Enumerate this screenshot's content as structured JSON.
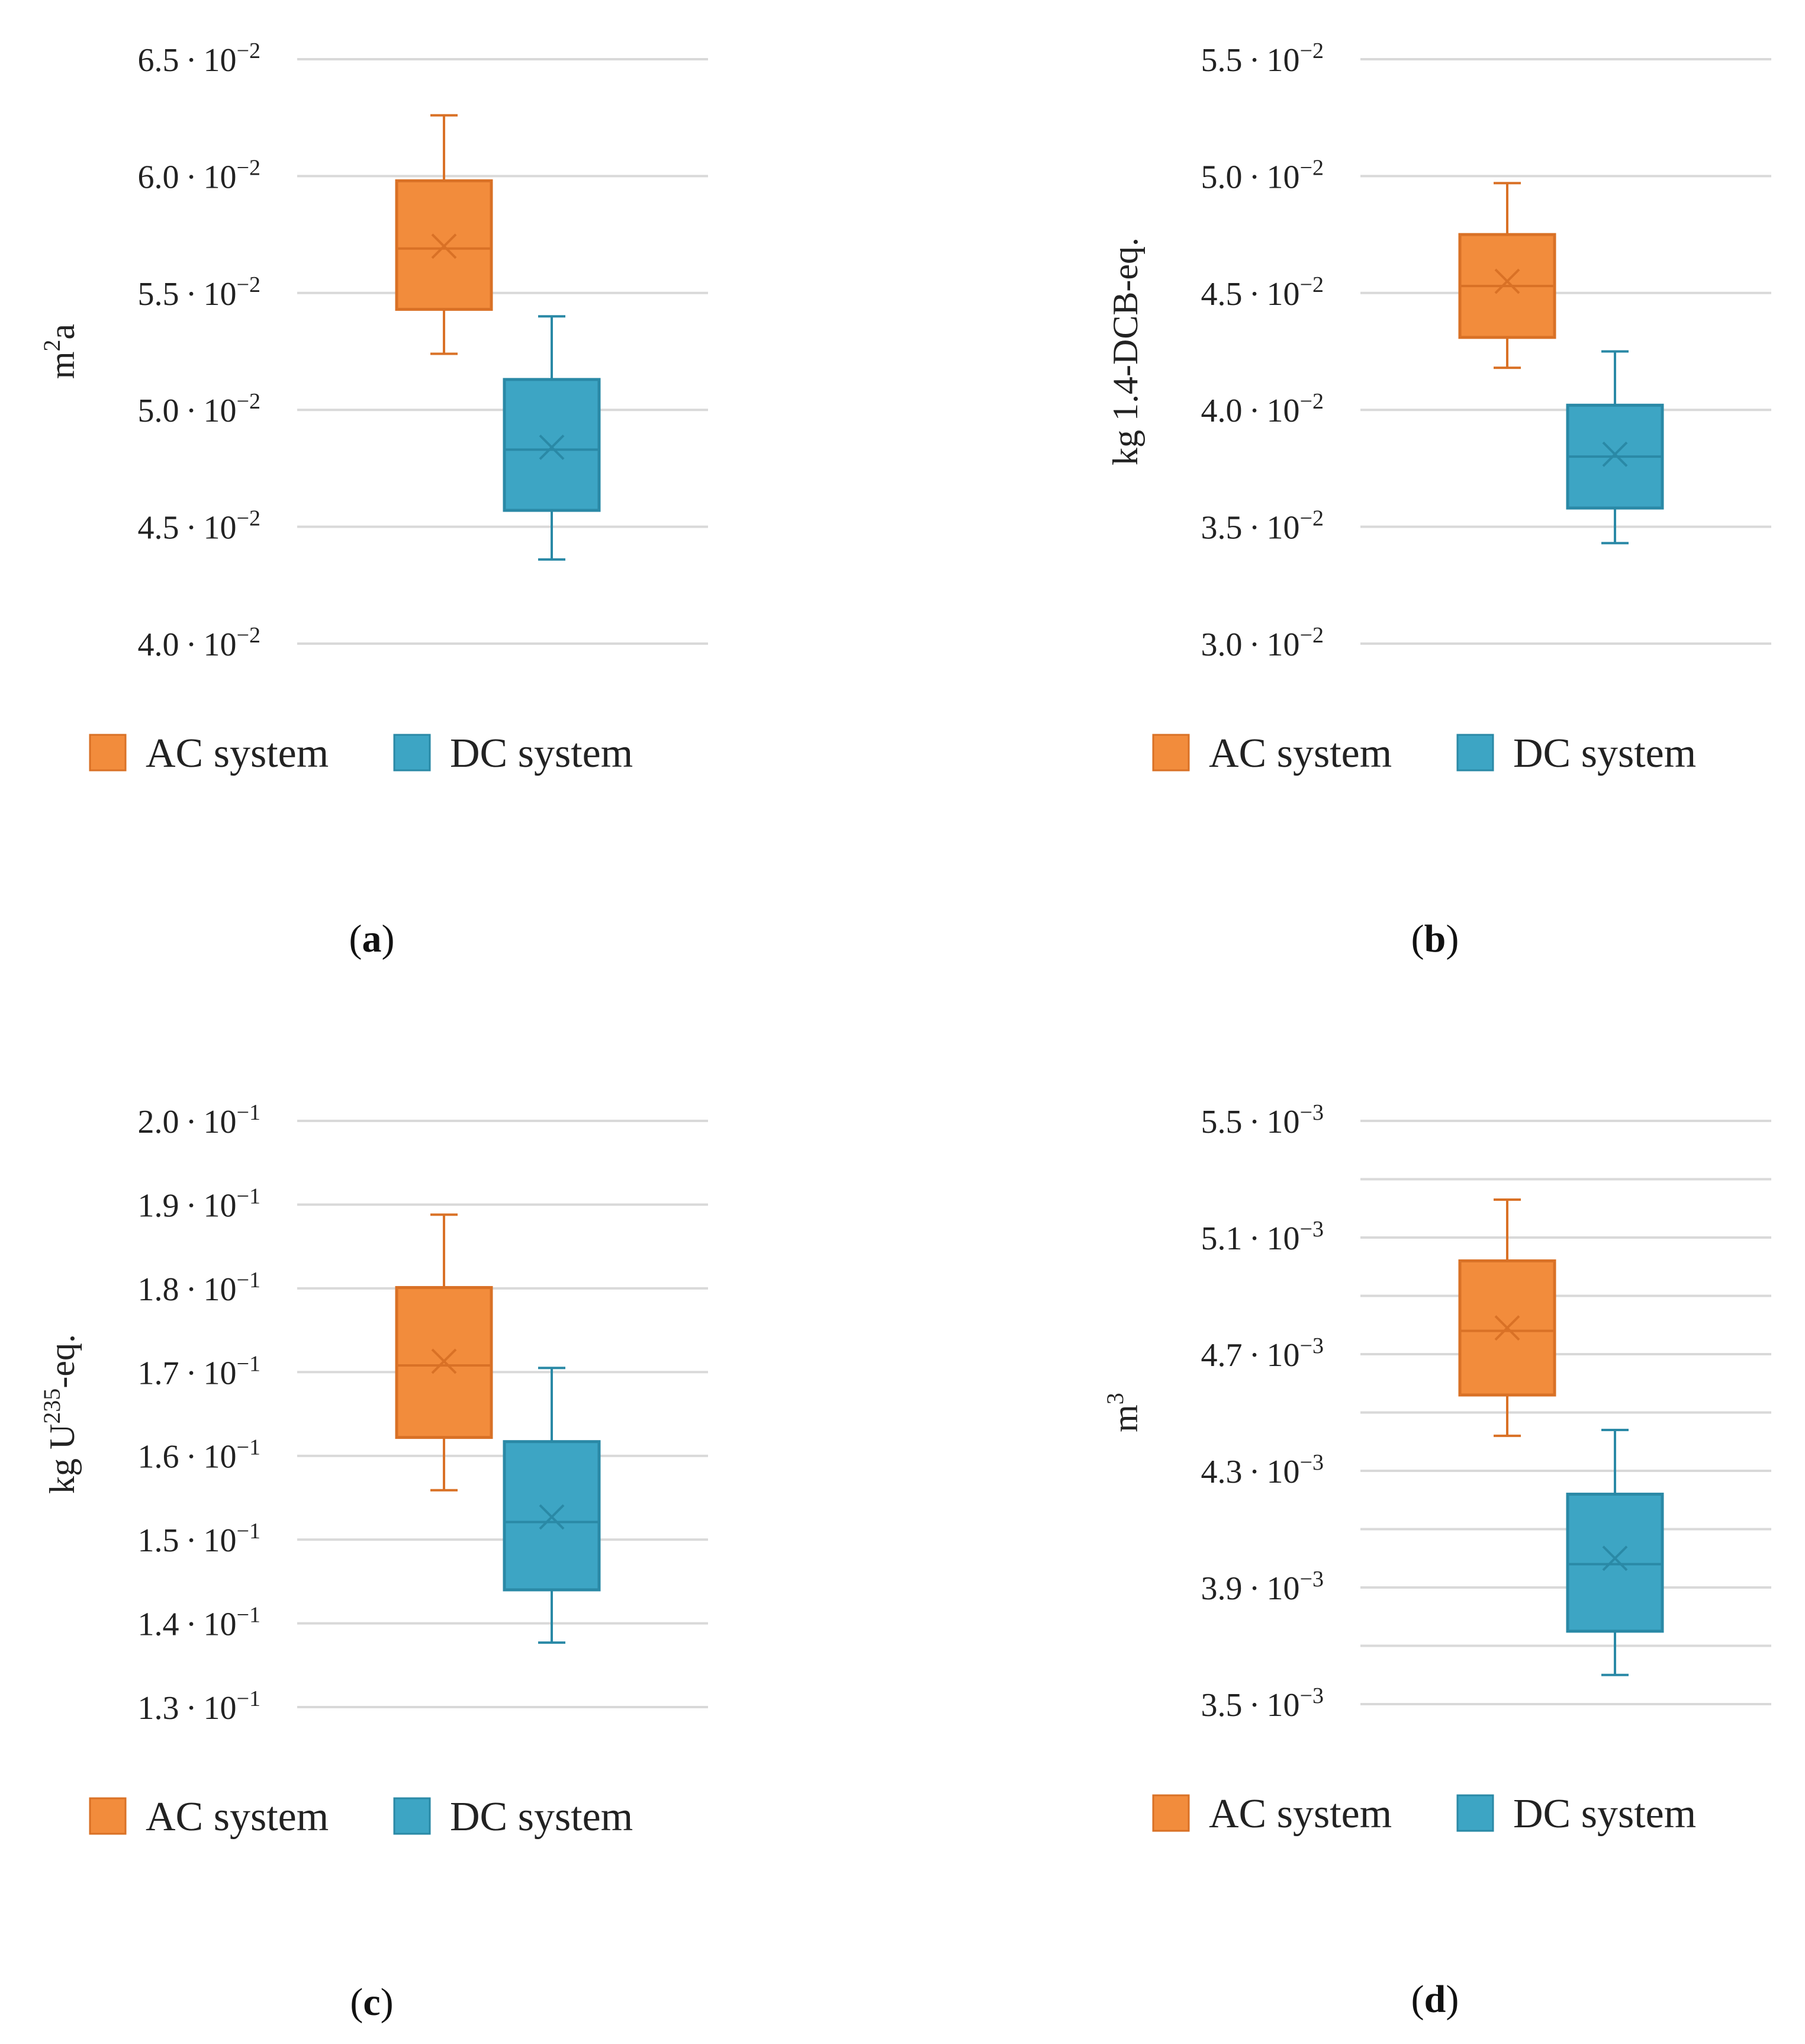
{
  "colors": {
    "ac": "#F28C3C",
    "ac_stroke": "#D97126",
    "dc": "#3DA5C4",
    "dc_stroke": "#2A89A6",
    "grid": "#D9D9D9"
  },
  "legend": {
    "ac_label": "AC system",
    "dc_label": "DC system"
  },
  "chart_data": [
    {
      "type": "box",
      "caption_letter": "a",
      "ylabel": {
        "base": "m",
        "sup": "2",
        "tail": "a"
      },
      "ylim": [
        0.04,
        0.065
      ],
      "ticks": [
        {
          "value": 0.04,
          "mant": "4.0",
          "exp": "-2"
        },
        {
          "value": 0.045,
          "mant": "4.5",
          "exp": "-2"
        },
        {
          "value": 0.05,
          "mant": "5.0",
          "exp": "-2"
        },
        {
          "value": 0.055,
          "mant": "5.5",
          "exp": "-2"
        },
        {
          "value": 0.06,
          "mant": "6.0",
          "exp": "-2"
        },
        {
          "value": 0.065,
          "mant": "6.5",
          "exp": "-2"
        }
      ],
      "minor_ticks": [],
      "series": [
        {
          "name": "AC system",
          "min": 0.0524,
          "q1": 0.0543,
          "median": 0.0569,
          "mean": 0.057,
          "q3": 0.0598,
          "max": 0.0626
        },
        {
          "name": "DC system",
          "min": 0.0436,
          "q1": 0.0457,
          "median": 0.0483,
          "mean": 0.0484,
          "q3": 0.0513,
          "max": 0.054
        }
      ]
    },
    {
      "type": "box",
      "caption_letter": "b",
      "ylabel": {
        "base": "kg 1.4-DCB-eq.",
        "sup": "",
        "tail": ""
      },
      "ylim": [
        0.03,
        0.055
      ],
      "ticks": [
        {
          "value": 0.03,
          "mant": "3.0",
          "exp": "-2"
        },
        {
          "value": 0.035,
          "mant": "3.5",
          "exp": "-2"
        },
        {
          "value": 0.04,
          "mant": "4.0",
          "exp": "-2"
        },
        {
          "value": 0.045,
          "mant": "4.5",
          "exp": "-2"
        },
        {
          "value": 0.05,
          "mant": "5.0",
          "exp": "-2"
        },
        {
          "value": 0.055,
          "mant": "5.5",
          "exp": "-2"
        }
      ],
      "minor_ticks": [],
      "series": [
        {
          "name": "AC system",
          "min": 0.0418,
          "q1": 0.0431,
          "median": 0.0453,
          "mean": 0.0455,
          "q3": 0.0475,
          "max": 0.0497
        },
        {
          "name": "DC system",
          "min": 0.0343,
          "q1": 0.0358,
          "median": 0.038,
          "mean": 0.0381,
          "q3": 0.0402,
          "max": 0.0425
        }
      ]
    },
    {
      "type": "box",
      "caption_letter": "c",
      "ylabel": {
        "base": "kg U",
        "sup": "235",
        "tail": "-eq."
      },
      "ylim": [
        0.13,
        0.2
      ],
      "ticks": [
        {
          "value": 0.13,
          "mant": "1.3",
          "exp": "-1"
        },
        {
          "value": 0.14,
          "mant": "1.4",
          "exp": "-1"
        },
        {
          "value": 0.15,
          "mant": "1.5",
          "exp": "-1"
        },
        {
          "value": 0.16,
          "mant": "1.6",
          "exp": "-1"
        },
        {
          "value": 0.17,
          "mant": "1.7",
          "exp": "-1"
        },
        {
          "value": 0.18,
          "mant": "1.8",
          "exp": "-1"
        },
        {
          "value": 0.19,
          "mant": "1.9",
          "exp": "-1"
        },
        {
          "value": 0.2,
          "mant": "2.0",
          "exp": "-1"
        }
      ],
      "minor_ticks": [],
      "series": [
        {
          "name": "AC system",
          "min": 0.1559,
          "q1": 0.1622,
          "median": 0.1708,
          "mean": 0.1713,
          "q3": 0.1801,
          "max": 0.1888
        },
        {
          "name": "DC system",
          "min": 0.1377,
          "q1": 0.144,
          "median": 0.1521,
          "mean": 0.1527,
          "q3": 0.1617,
          "max": 0.1705
        }
      ]
    },
    {
      "type": "box",
      "caption_letter": "d",
      "ylabel": {
        "base": "m",
        "sup": "3",
        "tail": ""
      },
      "ylim": [
        0.0035,
        0.0055
      ],
      "ticks": [
        {
          "value": 0.0035,
          "mant": "3.5",
          "exp": "-3"
        },
        {
          "value": 0.0039,
          "mant": "3.9",
          "exp": "-3"
        },
        {
          "value": 0.0043,
          "mant": "4.3",
          "exp": "-3"
        },
        {
          "value": 0.0047,
          "mant": "4.7",
          "exp": "-3"
        },
        {
          "value": 0.0051,
          "mant": "5.1",
          "exp": "-3"
        },
        {
          "value": 0.0055,
          "mant": "5.5",
          "exp": "-3"
        }
      ],
      "minor_ticks": [
        0.0037,
        0.0041,
        0.0045,
        0.0049,
        0.0053
      ],
      "series": [
        {
          "name": "AC system",
          "min": 0.00442,
          "q1": 0.00456,
          "median": 0.00478,
          "mean": 0.00479,
          "q3": 0.00502,
          "max": 0.00523
        },
        {
          "name": "DC system",
          "min": 0.0036,
          "q1": 0.00375,
          "median": 0.00398,
          "mean": 0.004,
          "q3": 0.00422,
          "max": 0.00444
        }
      ]
    }
  ]
}
